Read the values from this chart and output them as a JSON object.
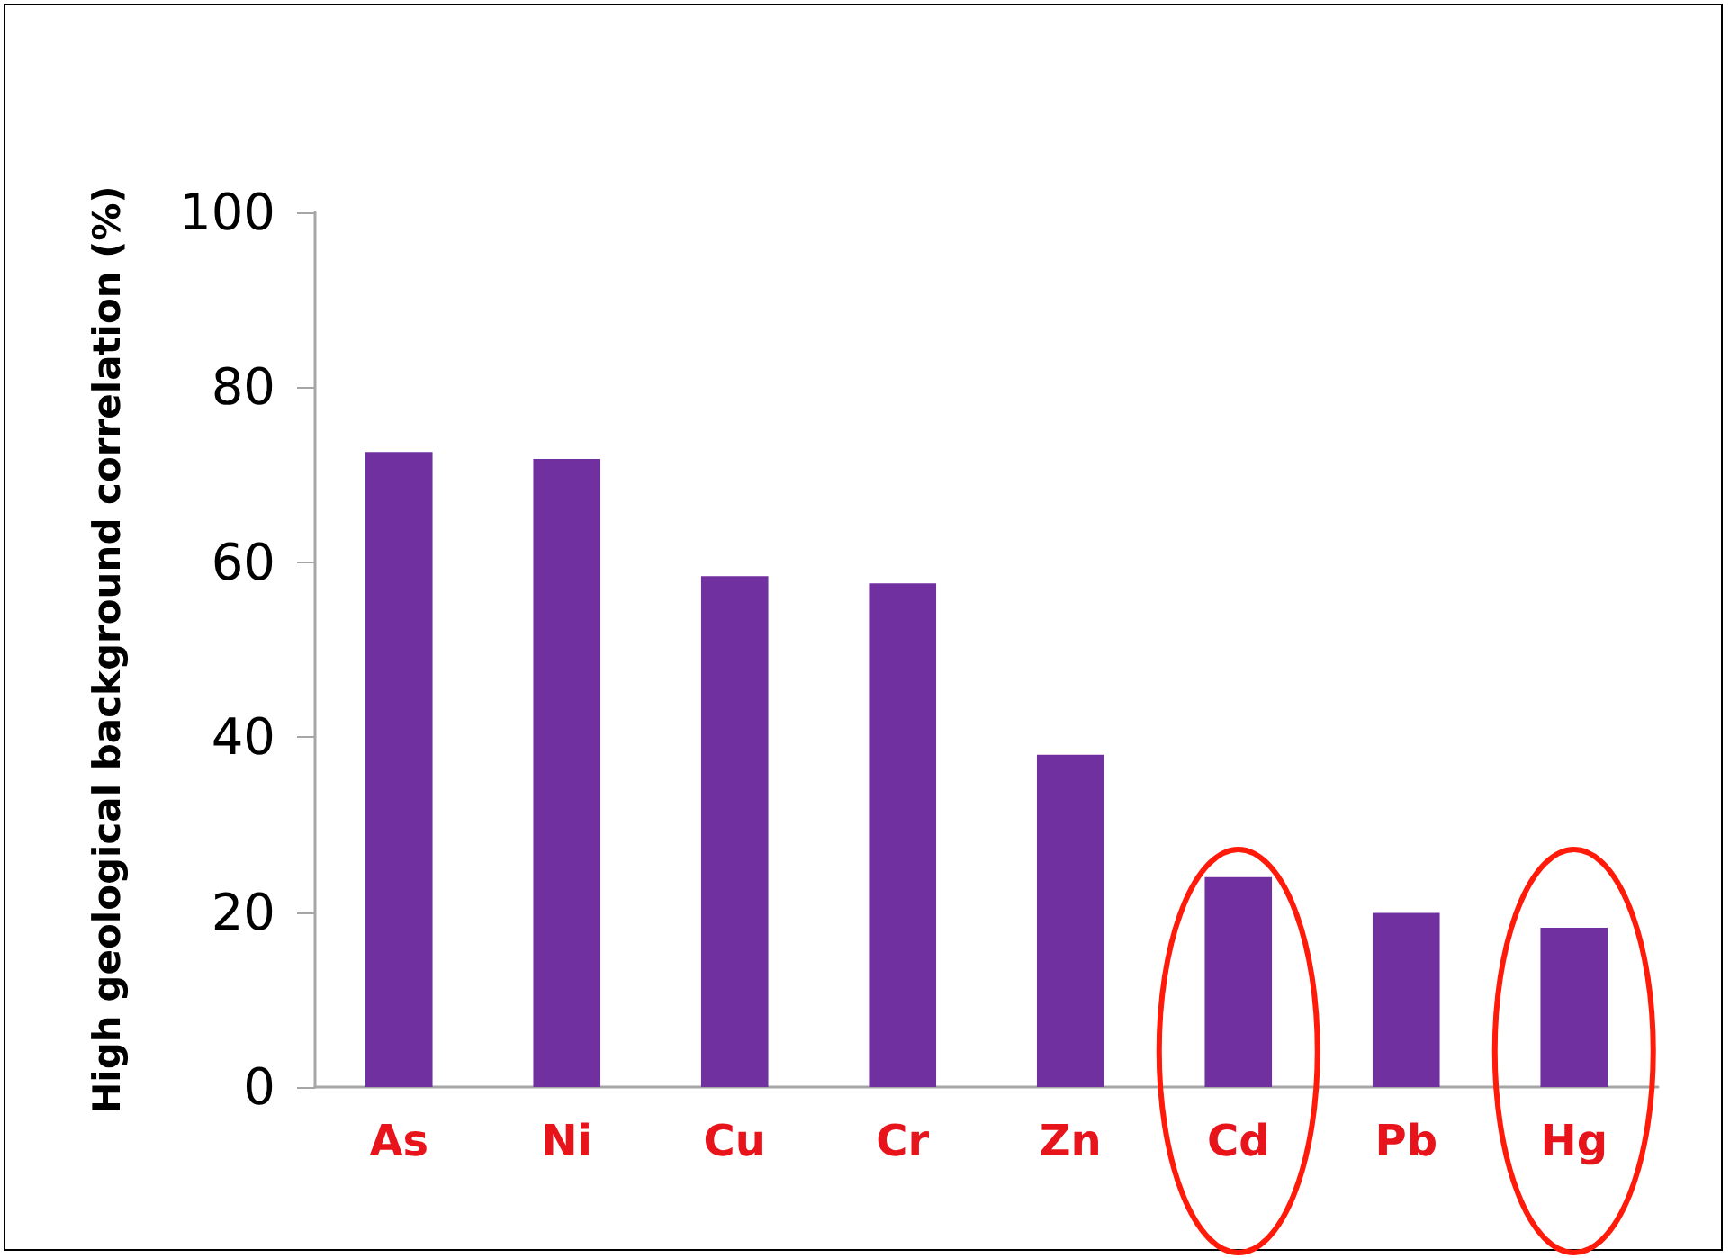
{
  "chart_data": {
    "type": "bar",
    "ylabel": "High geological background correlation (%)",
    "categories": [
      "As",
      "Ni",
      "Cu",
      "Cr",
      "Zn",
      "Cd",
      "Pb",
      "Hg"
    ],
    "values": [
      72.6,
      71.8,
      58.4,
      57.6,
      38.0,
      24.0,
      19.9,
      18.2
    ],
    "color": "#7030a0",
    "ylim": [
      0,
      100
    ],
    "yticks": [
      0,
      20,
      40,
      60,
      80,
      100
    ],
    "grid": false
  }
}
